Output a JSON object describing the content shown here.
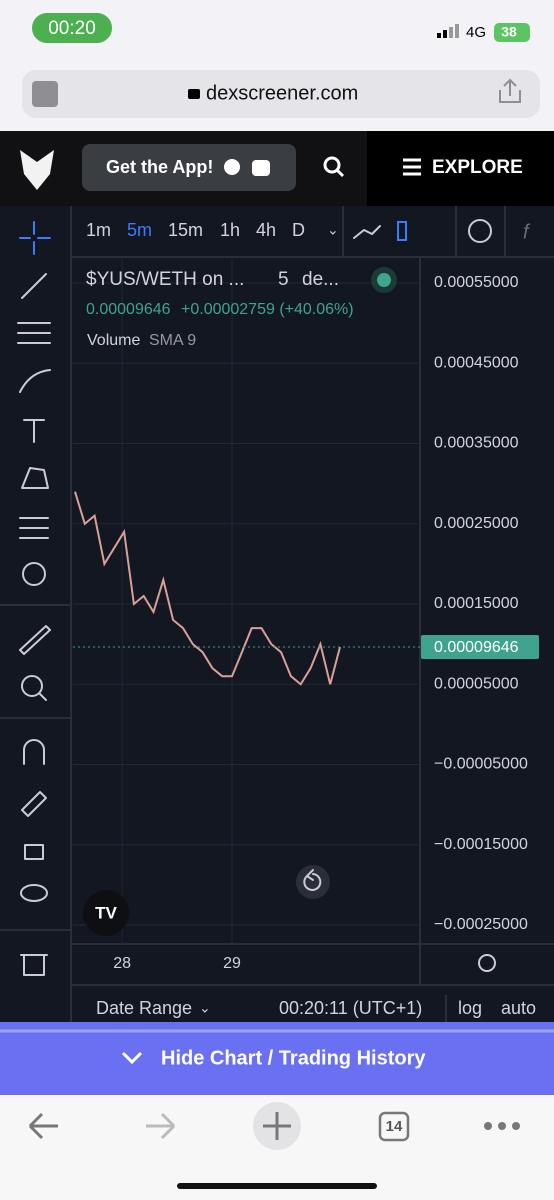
{
  "status_bar": {
    "time": "00:20",
    "network": "4G",
    "battery": "38"
  },
  "address_bar": {
    "url": "dexscreener.com"
  },
  "header": {
    "get_app": "Get the App!",
    "explore": "EXPLORE"
  },
  "toolbar": {
    "intervals": [
      "1m",
      "5m",
      "15m",
      "1h",
      "4h",
      "D"
    ]
  },
  "legend": {
    "symbol": "$YUS/WETH on ...",
    "interval": "5",
    "exchange": "de...",
    "price": "0.00009646",
    "change": "+0.00002759 (+40.06%)",
    "indicator": "Volume",
    "indicator_setting": "SMA 9"
  },
  "chart_data": {
    "type": "line",
    "values": [
      0.00029,
      0.00025,
      0.00026,
      0.0002,
      0.00022,
      0.00024,
      0.00015,
      0.00016,
      0.00014,
      0.00018,
      0.00013,
      0.00012,
      0.0001,
      9e-05,
      7e-05,
      6e-05,
      6e-05,
      9e-05,
      0.00012,
      0.00012,
      0.0001,
      9e-05,
      6e-05,
      5e-05,
      7e-05,
      0.0001,
      5e-05,
      9.646e-05
    ],
    "color": "#d9a196",
    "last_price": {
      "value": 9.646e-05,
      "label": "0.00009646"
    },
    "last_price_color": "#3fa38e",
    "ylim": [
      -0.00025,
      0.00055
    ],
    "yticks": [
      {
        "value": 0.00055,
        "label": "0.00055000"
      },
      {
        "value": 0.00045,
        "label": "0.00045000"
      },
      {
        "value": 0.00035,
        "label": "0.00035000"
      },
      {
        "value": 0.00025,
        "label": "0.00025000"
      },
      {
        "value": 0.00015,
        "label": "0.00015000"
      },
      {
        "value": 5e-05,
        "label": "0.00005000"
      },
      {
        "value": -5e-05,
        "label": "−0.00005000"
      },
      {
        "value": -0.00015,
        "label": "−0.00015000"
      },
      {
        "value": -0.00025,
        "label": "−0.00025000"
      }
    ],
    "xlim": [
      0,
      27
    ],
    "xticks": [
      {
        "value": 4.8,
        "label": "28"
      },
      {
        "value": 16,
        "label": "29"
      }
    ],
    "grid": true
  },
  "footer": {
    "date_range": "Date Range",
    "clock": "00:20:11 (UTC+1)",
    "log": "log",
    "auto": "auto"
  },
  "banner": {
    "label": "Hide Chart / Trading History"
  },
  "browser_bar": {
    "tabs": "14"
  }
}
